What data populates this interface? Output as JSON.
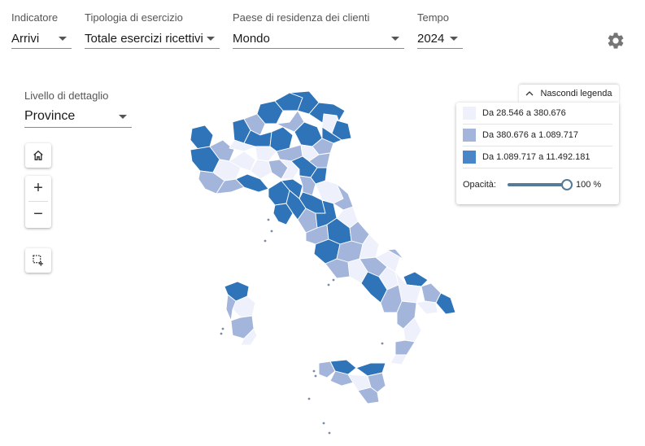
{
  "filters": [
    {
      "label": "Indicatore",
      "value": "Arrivi"
    },
    {
      "label": "Tipologia di esercizio",
      "value": "Totale esercizi ricettivi"
    },
    {
      "label": "Paese di residenza dei clienti",
      "value": "Mondo"
    },
    {
      "label": "Tempo",
      "value": "2024"
    }
  ],
  "settings_icon": "gear-icon",
  "detail": {
    "label": "Livello di dettaglio",
    "value": "Province"
  },
  "controls": {
    "home_icon": "home-icon",
    "zoom_in": "+",
    "zoom_out": "−",
    "select_icon": "box-select-icon"
  },
  "legend": {
    "toggle_label": "Nascondi legenda",
    "items": [
      {
        "label": "Da 28.546 a 380.676",
        "color": "#eef0fb"
      },
      {
        "label": "Da 380.676 a 1.089.717",
        "color": "#a3b5db"
      },
      {
        "label": "Da 1.089.717 a 11.492.181",
        "color": "#4a86c6"
      }
    ],
    "opacity_label": "Opacità:",
    "opacity_value": "100 %",
    "opacity_fraction": 1.0
  },
  "map_colors": {
    "low": "#eef0fb",
    "mid": "#a3b5db",
    "high": "#2f73b8",
    "border": "#ffffff",
    "outline": "#6b7fa8"
  }
}
